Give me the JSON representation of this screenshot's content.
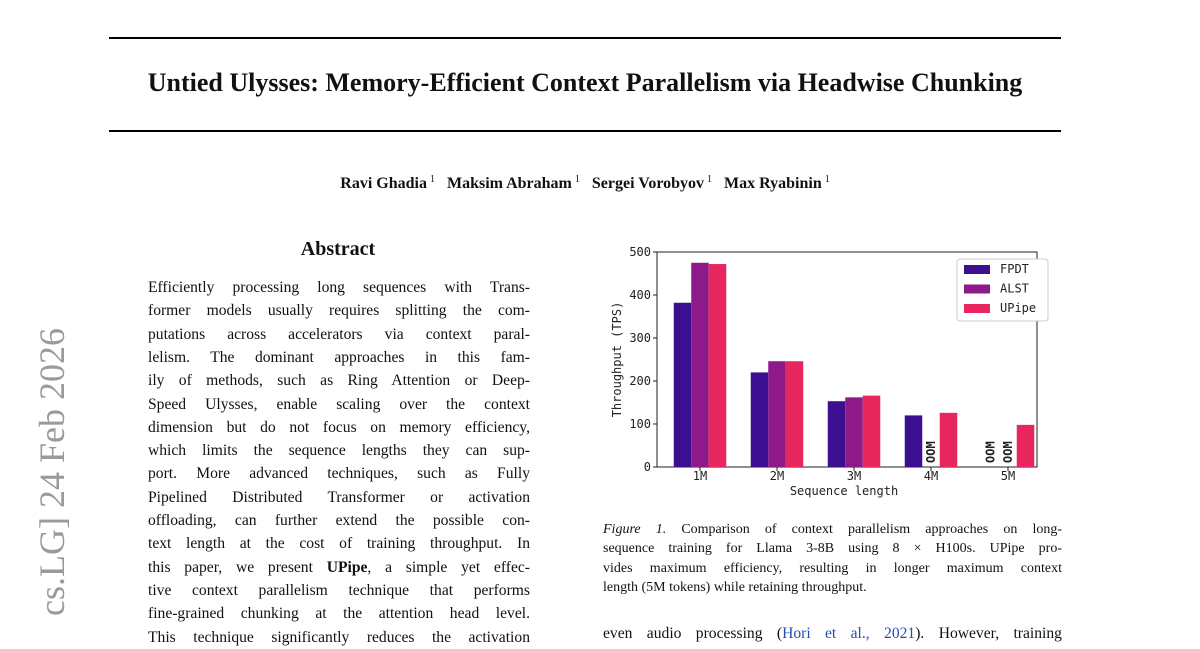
{
  "side_stamp": "cs.LG]  24 Feb 2026",
  "header": {
    "title": "Untied Ulysses: Memory-Efficient Context Parallelism via Headwise Chunking"
  },
  "authors": [
    {
      "name": "Ravi Ghadia",
      "affiliation": "1"
    },
    {
      "name": "Maksim Abraham",
      "affiliation": "1"
    },
    {
      "name": "Sergei Vorobyov",
      "affiliation": "1"
    },
    {
      "name": "Max Ryabinin",
      "affiliation": "1"
    }
  ],
  "abstract": {
    "heading": "Abstract",
    "lines": [
      "Efficiently processing long sequences with Trans-",
      "former models usually requires splitting the com-",
      "putations across accelerators via context paral-",
      "lelism.  The dominant approaches in this fam-",
      "ily of methods, such as Ring Attention or Deep-",
      "Speed Ulysses, enable scaling over the context",
      "dimension but do not focus on memory efficiency,",
      "which limits the sequence lengths they can sup-",
      "port.  More advanced techniques, such as Fully",
      "Pipelined Distributed Transformer or activation",
      "offloading, can further extend the possible con-",
      "text length at the cost of training throughput. In",
      {
        "before": "this paper, we present ",
        "bold": "UPipe",
        "after": ", a simple yet effec-"
      },
      "tive context parallelism technique that performs",
      "fine-grained chunking at the attention head level.",
      "This technique significantly reduces the activation"
    ]
  },
  "chart_data": {
    "type": "bar",
    "categories": [
      "1M",
      "2M",
      "3M",
      "4M",
      "5M"
    ],
    "series": [
      {
        "name": "FPDT",
        "color": "#3b0f8f",
        "values": [
          382,
          220,
          153,
          120,
          null
        ],
        "value_labels": [
          null,
          null,
          null,
          null,
          "OOM"
        ]
      },
      {
        "name": "ALST",
        "color": "#8e1a89",
        "values": [
          475,
          246,
          162,
          null,
          null
        ],
        "value_labels": [
          null,
          null,
          null,
          "OOM",
          "OOM"
        ]
      },
      {
        "name": "UPipe",
        "color": "#e8265e",
        "values": [
          472,
          246,
          166,
          126,
          98
        ],
        "value_labels": [
          null,
          null,
          null,
          null,
          null
        ]
      }
    ],
    "xlabel": "Sequence length",
    "ylabel": "Throughput (TPS)",
    "ylim": [
      0,
      500
    ],
    "yticks": [
      0,
      100,
      200,
      300,
      400,
      500
    ],
    "grid": false,
    "legend": "upper right"
  },
  "figure_caption": {
    "label": "Figure 1.",
    "lines": [
      " Comparison of context parallelism approaches on long-",
      "sequence training for Llama 3-8B using 8 × H100s.  UPipe pro-",
      "vides maximum efficiency, resulting in longer maximum context",
      "length (5M tokens) while retaining throughput."
    ]
  },
  "body": {
    "lines": [
      {
        "before": "even audio processing (",
        "link": "Hori et al., 2021",
        "after": "). However, training"
      }
    ]
  }
}
